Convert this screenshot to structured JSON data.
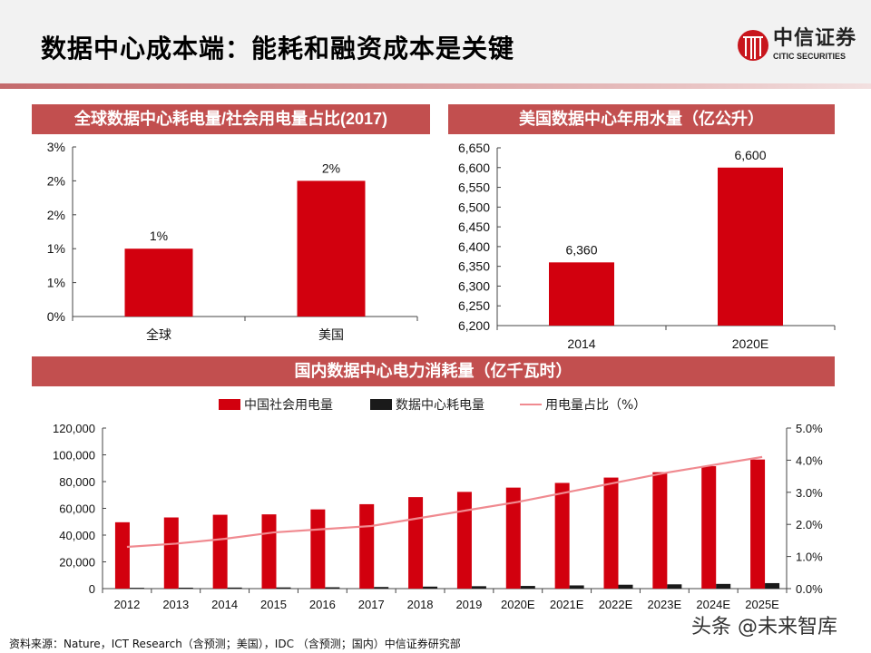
{
  "title": "数据中心成本端：能耗和融资成本是关键",
  "logo": {
    "cn": "中信证券",
    "en": "CITIC SECURITIES"
  },
  "source": "资料来源：Nature，ICT Research（含预测；美国），IDC （含预测；国内）中信证券研究部",
  "watermark": "头条 @未来智库",
  "colors": {
    "bar": "#d2000e",
    "header": "#c24f4f",
    "dark": "#1a1a1a",
    "line": "#f08a90"
  },
  "chart_data": [
    {
      "type": "bar",
      "title": "全球数据中心耗电量/社会用电量占比(2017)",
      "categories": [
        "全球",
        "美国"
      ],
      "values": [
        1.2,
        2.4
      ],
      "data_labels": [
        "1%",
        "2%"
      ],
      "yticks": [
        0,
        0.6,
        1.2,
        1.8,
        2.4,
        3.0
      ],
      "ytick_labels": [
        "0%",
        "1%",
        "1%",
        "2%",
        "2%",
        "3%"
      ],
      "ylim": [
        0,
        3.0
      ]
    },
    {
      "type": "bar",
      "title": "美国数据中心年用水量（亿公升）",
      "categories": [
        "2014",
        "2020E"
      ],
      "values": [
        6360,
        6600
      ],
      "data_labels": [
        "6,360",
        "6,600"
      ],
      "yticks": [
        6200,
        6250,
        6300,
        6350,
        6400,
        6450,
        6500,
        6550,
        6600,
        6650
      ],
      "ytick_labels": [
        "6,200",
        "6,250",
        "6,300",
        "6,350",
        "6,400",
        "6,450",
        "6,500",
        "6,550",
        "6,600",
        "6,650"
      ],
      "ylim": [
        6200,
        6650
      ]
    },
    {
      "type": "bar+line",
      "title": "国内数据中心电力消耗量（亿千瓦时）",
      "categories": [
        "2012",
        "2013",
        "2014",
        "2015",
        "2016",
        "2017",
        "2018",
        "2019",
        "2020E",
        "2021E",
        "2022E",
        "2023E",
        "2024E",
        "2025E"
      ],
      "series": [
        {
          "name": "中国社会用电量",
          "axis": "left",
          "type": "bar",
          "values": [
            49600,
            53200,
            55200,
            55500,
            59200,
            63100,
            68400,
            72300,
            75500,
            79000,
            83000,
            87000,
            91500,
            96500
          ]
        },
        {
          "name": "数据中心耗电量",
          "axis": "left",
          "type": "bar",
          "values": [
            600,
            700,
            800,
            900,
            1000,
            1200,
            1500,
            1800,
            2000,
            2400,
            2900,
            3200,
            3500,
            4100
          ]
        },
        {
          "name": "用电量占比（%）",
          "axis": "right",
          "type": "line",
          "values": [
            1.3,
            1.4,
            1.55,
            1.75,
            1.85,
            1.95,
            2.2,
            2.45,
            2.7,
            3.0,
            3.3,
            3.6,
            3.85,
            4.1
          ]
        }
      ],
      "ylim": [
        0,
        120000
      ],
      "yticks": [
        0,
        20000,
        40000,
        60000,
        80000,
        100000,
        120000
      ],
      "ytick_labels": [
        "0",
        "20,000",
        "40,000",
        "60,000",
        "80,000",
        "100,000",
        "120,000"
      ],
      "y2lim": [
        0,
        5
      ],
      "y2ticks": [
        0,
        1,
        2,
        3,
        4,
        5
      ],
      "y2tick_labels": [
        "0.0%",
        "1.0%",
        "2.0%",
        "3.0%",
        "4.0%",
        "5.0%"
      ],
      "legend": "top"
    }
  ]
}
